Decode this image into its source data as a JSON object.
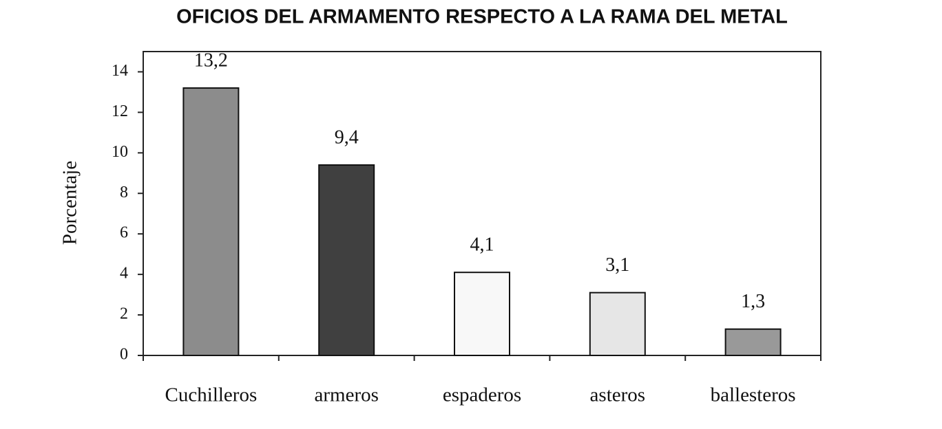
{
  "chart_data": {
    "type": "bar",
    "title": "OFICIOS DEL ARMAMENTO RESPECTO A LA RAMA DEL METAL",
    "y_label": "Porcentaje",
    "categories": [
      "Cuchilleros",
      "armeros",
      "espaderos",
      "asteros",
      "ballesteros"
    ],
    "values": [
      13.2,
      9.4,
      4.1,
      3.1,
      1.3
    ],
    "value_labels": [
      "13,2",
      "9,4",
      "4,1",
      "3,1",
      "1,3"
    ],
    "colors": [
      "#8c8c8c",
      "#404040",
      "#f8f8f8",
      "#e6e6e6",
      "#999999"
    ],
    "ylim": [
      0,
      15
    ],
    "yticks": [
      0,
      2,
      4,
      6,
      8,
      10,
      12,
      14
    ],
    "grid": false
  }
}
